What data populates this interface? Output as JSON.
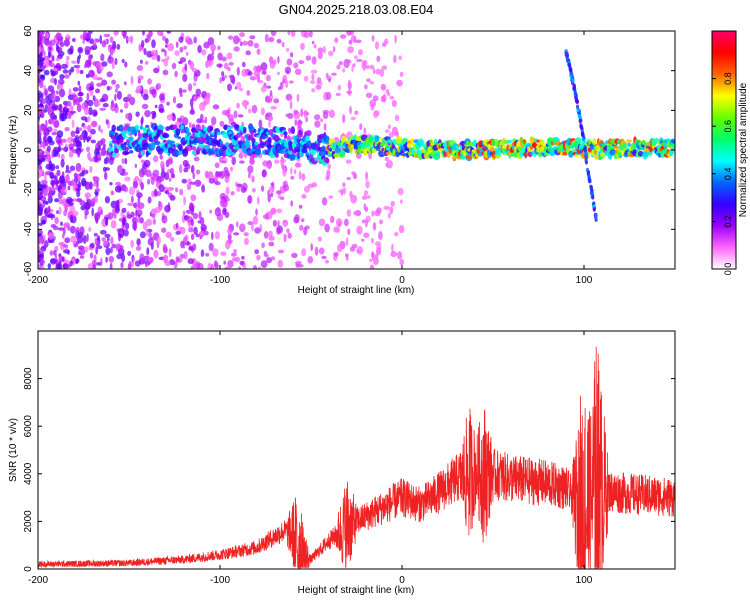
{
  "title": "GN04.2025.218.03.08.E04",
  "chart_data": [
    {
      "type": "heatmap",
      "xlabel": "Height of straight line (km)",
      "ylabel": "Frequency (Hz)",
      "xlim": [
        -200,
        150
      ],
      "ylim": [
        -60,
        60
      ],
      "xticks": [
        -200,
        -100,
        0,
        100
      ],
      "yticks": [
        -60,
        -40,
        -20,
        0,
        20,
        40,
        60
      ],
      "colorbar": {
        "label": "Normalized spectral amplitude",
        "range": [
          0,
          1
        ],
        "ticks": [
          "0.0",
          "0.2",
          "0.4",
          "0.6",
          "0.8"
        ],
        "colormap": [
          "#ffffff",
          "#ff66ff",
          "#9900ff",
          "#3300ff",
          "#0066ff",
          "#00ffff",
          "#00ff66",
          "#66ff00",
          "#ffff00",
          "#ff6600",
          "#ff0000",
          "#ff0066"
        ]
      },
      "ridge": [
        {
          "x": -200,
          "f": 0
        },
        {
          "x": -150,
          "f": 5
        },
        {
          "x": -110,
          "f": 5
        },
        {
          "x": -80,
          "f": 5
        },
        {
          "x": -60,
          "f": 3
        },
        {
          "x": -40,
          "f": 0
        },
        {
          "x": -20,
          "f": 3
        },
        {
          "x": 0,
          "f": 1
        },
        {
          "x": 30,
          "f": 0
        },
        {
          "x": 60,
          "f": 1
        },
        {
          "x": 90,
          "f": 2
        },
        {
          "x": 100,
          "f": 0
        },
        {
          "x": 120,
          "f": 1
        },
        {
          "x": 150,
          "f": 1
        }
      ],
      "chirp": [
        {
          "x": 90,
          "f": 50
        },
        {
          "x": 95,
          "f": 30
        },
        {
          "x": 100,
          "f": 5
        },
        {
          "x": 102,
          "f": -10
        },
        {
          "x": 105,
          "f": -25
        },
        {
          "x": 107,
          "f": -36
        }
      ]
    },
    {
      "type": "line",
      "xlabel": "Height of straight line (km)",
      "ylabel": "SNR (10 * v/v)",
      "xlim": [
        -200,
        150
      ],
      "ylim": [
        0,
        10000
      ],
      "xticks": [
        -200,
        -100,
        0,
        100
      ],
      "yticks": [
        0,
        2000,
        4000,
        6000,
        8000
      ],
      "series": [
        {
          "color": "#ee2222",
          "envelope": [
            {
              "x": -200,
              "v": 200
            },
            {
              "x": -150,
              "v": 250
            },
            {
              "x": -120,
              "v": 400
            },
            {
              "x": -100,
              "v": 600
            },
            {
              "x": -80,
              "v": 900
            },
            {
              "x": -65,
              "v": 1600
            },
            {
              "x": -60,
              "v": 1500
            },
            {
              "x": -55,
              "v": 600
            },
            {
              "x": -50,
              "v": 400
            },
            {
              "x": -40,
              "v": 1200
            },
            {
              "x": -30,
              "v": 1800
            },
            {
              "x": -20,
              "v": 2200
            },
            {
              "x": -10,
              "v": 2600
            },
            {
              "x": 0,
              "v": 3000
            },
            {
              "x": 10,
              "v": 2700
            },
            {
              "x": 20,
              "v": 3200
            },
            {
              "x": 30,
              "v": 3800
            },
            {
              "x": 40,
              "v": 4100
            },
            {
              "x": 50,
              "v": 4000
            },
            {
              "x": 60,
              "v": 3800
            },
            {
              "x": 70,
              "v": 3700
            },
            {
              "x": 80,
              "v": 3600
            },
            {
              "x": 90,
              "v": 3400
            },
            {
              "x": 100,
              "v": 2500
            },
            {
              "x": 105,
              "v": 3000
            },
            {
              "x": 110,
              "v": 3300
            },
            {
              "x": 120,
              "v": 3200
            },
            {
              "x": 135,
              "v": 3100
            },
            {
              "x": 150,
              "v": 3000
            }
          ],
          "peaks": [
            {
              "x": -58,
              "v": 3300
            },
            {
              "x": -30,
              "v": 4000
            },
            {
              "x": 37,
              "v": 7000
            },
            {
              "x": 45,
              "v": 7200
            },
            {
              "x": 100,
              "v": 9000
            },
            {
              "x": 107,
              "v": 10000
            }
          ]
        }
      ]
    }
  ]
}
